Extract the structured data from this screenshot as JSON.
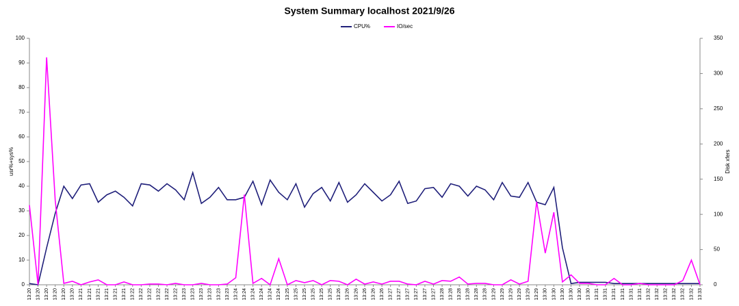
{
  "chart_data": {
    "type": "line",
    "title": "System Summary localhost  2021/9/26",
    "ylabel": "usr%+sys%",
    "y2label": "Disk xfers",
    "categories": [
      "13:20",
      "13:20",
      "13:20",
      "13:20",
      "13:20",
      "13:20",
      "13:21",
      "13:21",
      "13:21",
      "13:21",
      "13:21",
      "13:21",
      "13:22",
      "13:22",
      "13:22",
      "13:22",
      "13:22",
      "13:22",
      "13:23",
      "13:23",
      "13:23",
      "13:23",
      "13:23",
      "13:23",
      "13:24",
      "13:24",
      "13:24",
      "13:24",
      "13:24",
      "13:24",
      "13:25",
      "13:25",
      "13:25",
      "13:25",
      "13:25",
      "13:25",
      "13:26",
      "13:26",
      "13:26",
      "13:26",
      "13:26",
      "13:26",
      "13:27",
      "13:27",
      "13:27",
      "13:27",
      "13:27",
      "13:27",
      "13:28",
      "13:28",
      "13:28",
      "13:28",
      "13:28",
      "13:28",
      "13:29",
      "13:29",
      "13:29",
      "13:29",
      "13:29",
      "13:29",
      "13:30",
      "13:30",
      "13:30",
      "13:30",
      "13:30",
      "13:30",
      "13:31",
      "13:31",
      "13:31",
      "13:31",
      "13:31",
      "13:31",
      "13:32",
      "13:32",
      "13:32",
      "13:32",
      "13:32",
      "13:32",
      "13:33"
    ],
    "series": [
      {
        "name": "CPU%",
        "color": "#1f1f7a",
        "values": [
          0.5,
          0,
          15,
          29,
          40,
          35,
          40.5,
          41,
          33.5,
          36.5,
          38,
          35.5,
          32,
          41,
          40.5,
          38,
          41,
          38.5,
          34.5,
          45.5,
          33,
          35.5,
          39.5,
          34.5,
          34.5,
          35.5,
          42,
          32.5,
          42.5,
          37.5,
          34.5,
          41,
          31.5,
          37,
          39.5,
          34,
          41.5,
          33.5,
          36.5,
          41,
          37.5,
          34,
          36.5,
          42,
          33,
          34,
          39,
          39.5,
          35.5,
          41,
          40,
          36,
          40,
          38.5,
          34.5,
          41.5,
          36,
          35.5,
          41.5,
          33.5,
          32.5,
          39.5,
          15,
          0.5,
          1,
          1,
          1,
          1,
          0.5,
          0.5,
          0.5,
          0.5,
          0.5,
          0.5,
          0.5,
          0.5,
          0.5,
          0.5,
          0.5
        ]
      },
      {
        "name": "IO/sec",
        "color": "#ff00ff",
        "axis": "y2",
        "values": [
          113,
          0,
          323,
          120,
          2,
          5,
          0,
          4,
          7,
          0,
          0,
          4,
          0,
          0,
          1,
          1,
          0,
          2,
          0,
          0,
          2,
          0,
          0,
          1,
          10,
          128,
          2,
          9,
          0,
          37,
          0,
          6,
          3,
          6,
          0,
          6,
          5,
          0,
          8,
          1,
          4,
          1,
          5,
          5,
          1,
          0,
          5,
          1,
          6,
          5,
          11,
          1,
          2,
          2,
          0,
          0,
          7,
          1,
          5,
          118,
          45,
          103,
          4,
          14,
          2,
          2,
          0,
          0,
          9,
          0,
          0,
          2,
          0,
          0,
          0,
          0,
          6,
          35,
          0
        ]
      }
    ],
    "ylim": [
      0,
      100
    ],
    "yticks": [
      0,
      10,
      20,
      30,
      40,
      50,
      60,
      70,
      80,
      90,
      100
    ],
    "y2lim": [
      0,
      350
    ],
    "y2ticks": [
      0,
      50,
      100,
      150,
      200,
      250,
      300,
      350
    ],
    "legend": "top"
  }
}
